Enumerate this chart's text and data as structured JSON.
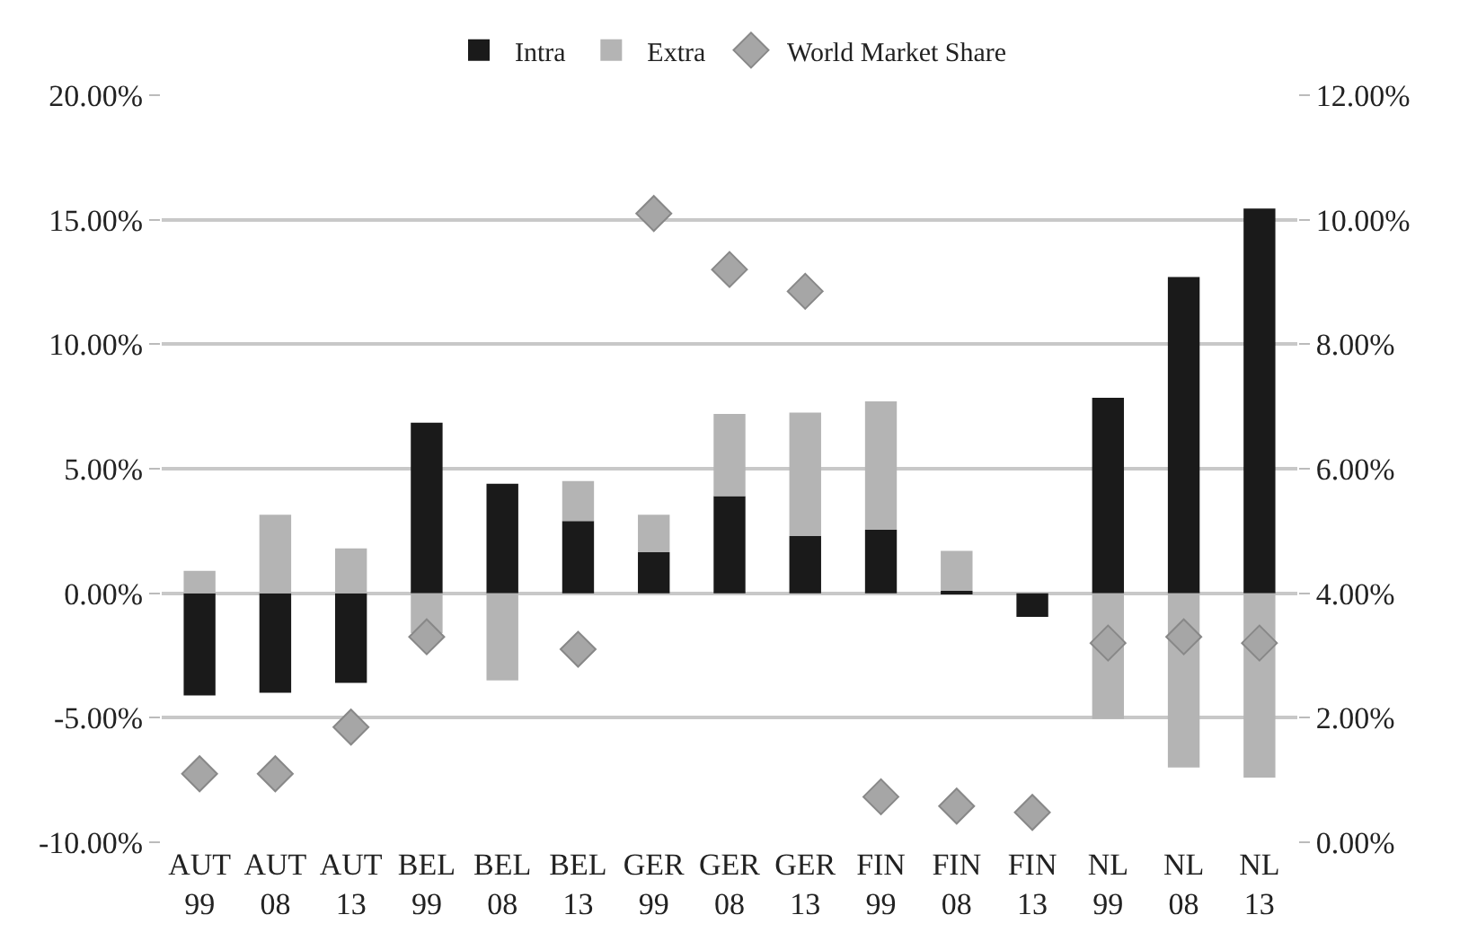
{
  "chart_data": {
    "type": "bar",
    "stacked": true,
    "categories": [
      "AUT\n99",
      "AUT\n08",
      "AUT\n13",
      "BEL\n99",
      "BEL\n08",
      "BEL\n13",
      "GER\n99",
      "GER\n08",
      "GER\n13",
      "FIN\n99",
      "FIN\n08",
      "FIN\n13",
      "NL\n99",
      "NL\n08",
      "NL\n13"
    ],
    "series": [
      {
        "name": "Intra",
        "color": "#1a1a1a",
        "values": [
          -4.1,
          -4.0,
          -3.6,
          6.85,
          4.4,
          2.9,
          1.65,
          3.9,
          2.3,
          2.55,
          0.1,
          -0.95,
          7.85,
          12.7,
          15.45
        ]
      },
      {
        "name": "Extra",
        "color": "#b4b4b4",
        "values": [
          0.9,
          3.15,
          1.8,
          -1.6,
          -3.5,
          1.6,
          1.5,
          3.3,
          4.95,
          5.15,
          1.6,
          0,
          -5.05,
          -7.0,
          -7.4
        ]
      },
      {
        "name": "World Market Share",
        "type": "scatter",
        "axis": "y2",
        "marker": "diamond",
        "color": "#a6a6a6",
        "values": [
          1.1,
          1.1,
          1.85,
          3.3,
          null,
          3.1,
          10.1,
          9.2,
          8.85,
          0.73,
          0.58,
          0.48,
          3.2,
          3.3,
          3.2
        ]
      }
    ],
    "ylim": [
      -10,
      20
    ],
    "yticks": [
      {
        "value": -10,
        "label": "-10.00%"
      },
      {
        "value": -5,
        "label": "-5.00%"
      },
      {
        "value": 0,
        "label": "0.00%"
      },
      {
        "value": 5,
        "label": "5.00%"
      },
      {
        "value": 10,
        "label": "10.00%"
      },
      {
        "value": 15,
        "label": "15.00%"
      },
      {
        "value": 20,
        "label": "20.00%"
      }
    ],
    "y2lim": [
      0,
      12
    ],
    "y2ticks": [
      {
        "value": 0,
        "label": "0.00%"
      },
      {
        "value": 2,
        "label": "2.00%"
      },
      {
        "value": 4,
        "label": "4.00%"
      },
      {
        "value": 6,
        "label": "6.00%"
      },
      {
        "value": 8,
        "label": "8.00%"
      },
      {
        "value": 10,
        "label": "10.00%"
      },
      {
        "value": 12,
        "label": "12.00%"
      }
    ],
    "grid": "y",
    "legend": "top"
  }
}
